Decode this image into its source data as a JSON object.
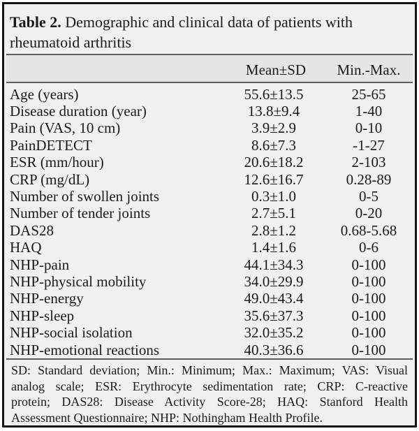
{
  "table": {
    "title_prefix": "Table 2.",
    "title_line1": "Demographic and clinical data of patients with",
    "title_line2": "rheumatoid arthritis",
    "columns": {
      "mean_sd": "Mean±SD",
      "min_max": "Min.-Max."
    },
    "rows": [
      {
        "label": "Age (years)",
        "mean_sd": "55.6±13.5",
        "min_max": "25-65"
      },
      {
        "label": "Disease duration (year)",
        "mean_sd": "13.8±9.4",
        "min_max": "1-40"
      },
      {
        "label": "Pain (VAS, 10 cm)",
        "mean_sd": "3.9±2.9",
        "min_max": "0-10"
      },
      {
        "label": "PainDETECT",
        "mean_sd": "8.6±7.3",
        "min_max": "-1-27"
      },
      {
        "label": "ESR (mm/hour)",
        "mean_sd": "20.6±18.2",
        "min_max": "2-103"
      },
      {
        "label": "CRP (mg/dL)",
        "mean_sd": "12.6±16.7",
        "min_max": "0.28-89"
      },
      {
        "label": "Number of swollen joints",
        "mean_sd": "0.3±1.0",
        "min_max": "0-5"
      },
      {
        "label": "Number of tender joints",
        "mean_sd": "2.7±5.1",
        "min_max": "0-20"
      },
      {
        "label": "DAS28",
        "mean_sd": "2.8±1.2",
        "min_max": "0.68-5.68"
      },
      {
        "label": "HAQ",
        "mean_sd": "1.4±1.6",
        "min_max": "0-6"
      },
      {
        "label": "NHP-pain",
        "mean_sd": "44.1±34.3",
        "min_max": "0-100"
      },
      {
        "label": "NHP-physical mobility",
        "mean_sd": "34.0±29.9",
        "min_max": "0-100"
      },
      {
        "label": "NHP-energy",
        "mean_sd": "49.0±43.4",
        "min_max": "0-100"
      },
      {
        "label": "NHP-sleep",
        "mean_sd": "35.6±37.3",
        "min_max": "0-100"
      },
      {
        "label": "NHP-social isolation",
        "mean_sd": "32.0±35.2",
        "min_max": "0-100"
      },
      {
        "label": "NHP-emotional reactions",
        "mean_sd": "40.3±36.6",
        "min_max": "0-100"
      }
    ],
    "footnote_lines": [
      "SD: Standard deviation; Min.: Minimum; Max.: Maximum; VAS: Visual",
      "analog scale; ESR: Erythrocyte sedimentation rate; CRP: C-reactive",
      "protein; DAS28: Disease Activity Score-28; HAQ: Stanford Health",
      "Assessment Questionnaire; NHP: Nothingham Health Profile."
    ],
    "colors": {
      "background": "#f0f1ef",
      "header_band": "#e4e6e5",
      "border": "#141414",
      "rule": "#5f5f5f",
      "text": "#1a1a1a",
      "page": "#ffffff"
    }
  }
}
